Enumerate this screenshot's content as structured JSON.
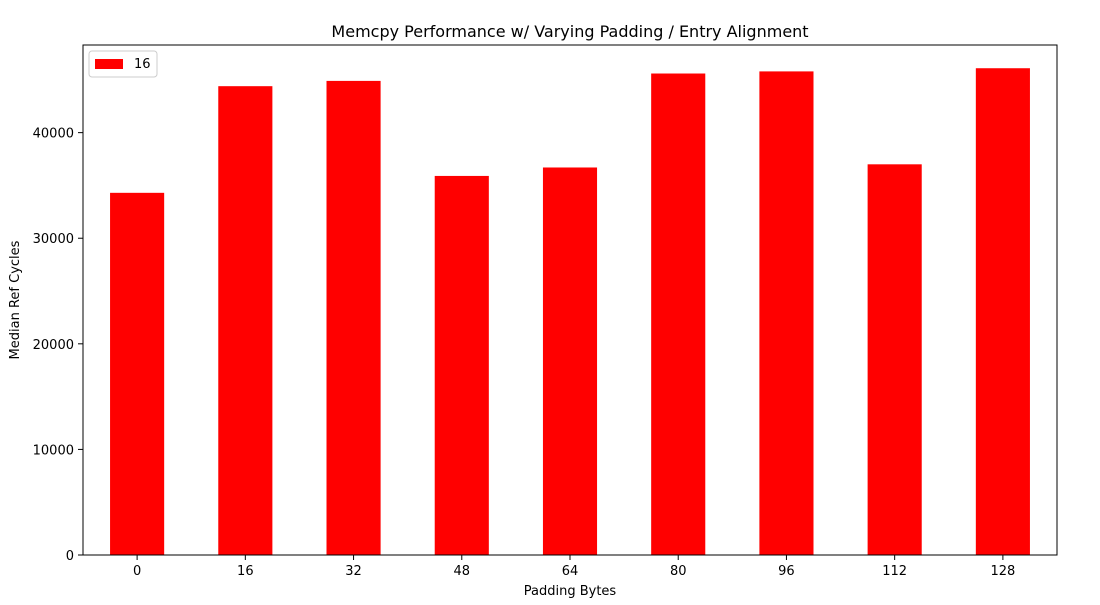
{
  "chart_data": {
    "type": "bar",
    "title": "Memcpy Performance w/ Varying Padding / Entry Alignment",
    "xlabel": "Padding Bytes",
    "ylabel": "Median Ref Cycles",
    "categories": [
      "0",
      "16",
      "32",
      "48",
      "64",
      "80",
      "96",
      "112",
      "128"
    ],
    "series": [
      {
        "name": "16",
        "color": "#ff0000",
        "values": [
          34300,
          44400,
          44900,
          35900,
          36700,
          45600,
          45800,
          37000,
          46100
        ]
      }
    ],
    "ylim": [
      0,
      48300
    ],
    "yticks": [
      0,
      10000,
      20000,
      30000,
      40000
    ],
    "grid": false,
    "legend_position": "top-left"
  }
}
